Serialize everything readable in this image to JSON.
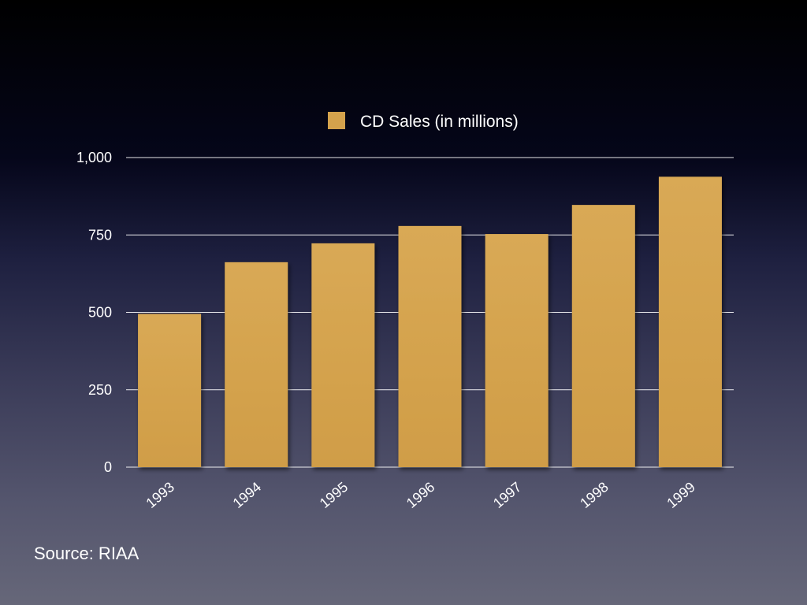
{
  "chart_data": {
    "type": "bar",
    "title": "",
    "xlabel": "",
    "ylabel": "",
    "categories": [
      "1993",
      "1994",
      "1995",
      "1996",
      "1997",
      "1998",
      "1999"
    ],
    "series": [
      {
        "name": "CD Sales (in millions)",
        "values": [
          495,
          662,
          723,
          779,
          753,
          847,
          938
        ]
      }
    ],
    "ylim": [
      0,
      1000
    ],
    "yticks": [
      0,
      250,
      500,
      750,
      1000
    ],
    "ytick_labels": [
      "0",
      "250",
      "500",
      "750",
      "1,000"
    ],
    "grid": true,
    "legend_position": "top-center"
  },
  "colors": {
    "bar": "#d4a24c",
    "bar_highlight": "#deb05c",
    "grid": "#ffffff",
    "text": "#ffffff"
  },
  "source_note": "Source: RIAA"
}
